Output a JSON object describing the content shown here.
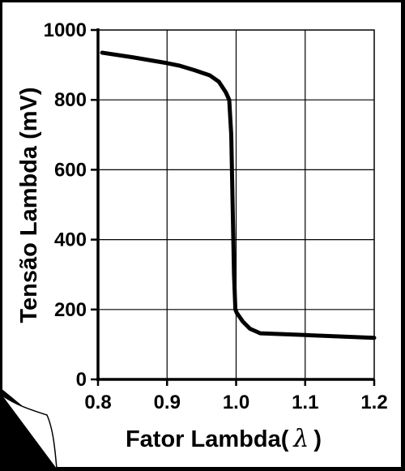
{
  "chart_data": {
    "type": "line",
    "xlabel": "Fator Lambda(",
    "xlabel_symbol": "λ",
    "xlabel_close": ")",
    "ylabel": "Tensão Lambda (mV)",
    "xlim": [
      0.8,
      1.2
    ],
    "ylim": [
      0,
      1000
    ],
    "xticks": [
      0.8,
      0.9,
      1.0,
      1.1,
      1.2
    ],
    "xtick_labels": [
      "0.8",
      "0.9",
      "1.0",
      "1.1",
      "1.2"
    ],
    "yticks": [
      0,
      200,
      400,
      600,
      800,
      1000
    ],
    "ytick_labels": [
      "0",
      "200",
      "400",
      "600",
      "800",
      "1000"
    ],
    "grid": true,
    "series": [
      {
        "x": [
          0.806,
          0.85,
          0.9,
          0.918,
          0.94,
          0.962,
          0.975,
          0.985,
          0.99,
          0.993,
          0.995,
          0.997,
          0.999,
          1.001,
          1.01,
          1.02,
          1.035,
          1.1,
          1.2
        ],
        "y": [
          935,
          922,
          905,
          898,
          885,
          870,
          852,
          822,
          800,
          700,
          500,
          300,
          200,
          190,
          165,
          145,
          132,
          127,
          119
        ]
      }
    ]
  }
}
